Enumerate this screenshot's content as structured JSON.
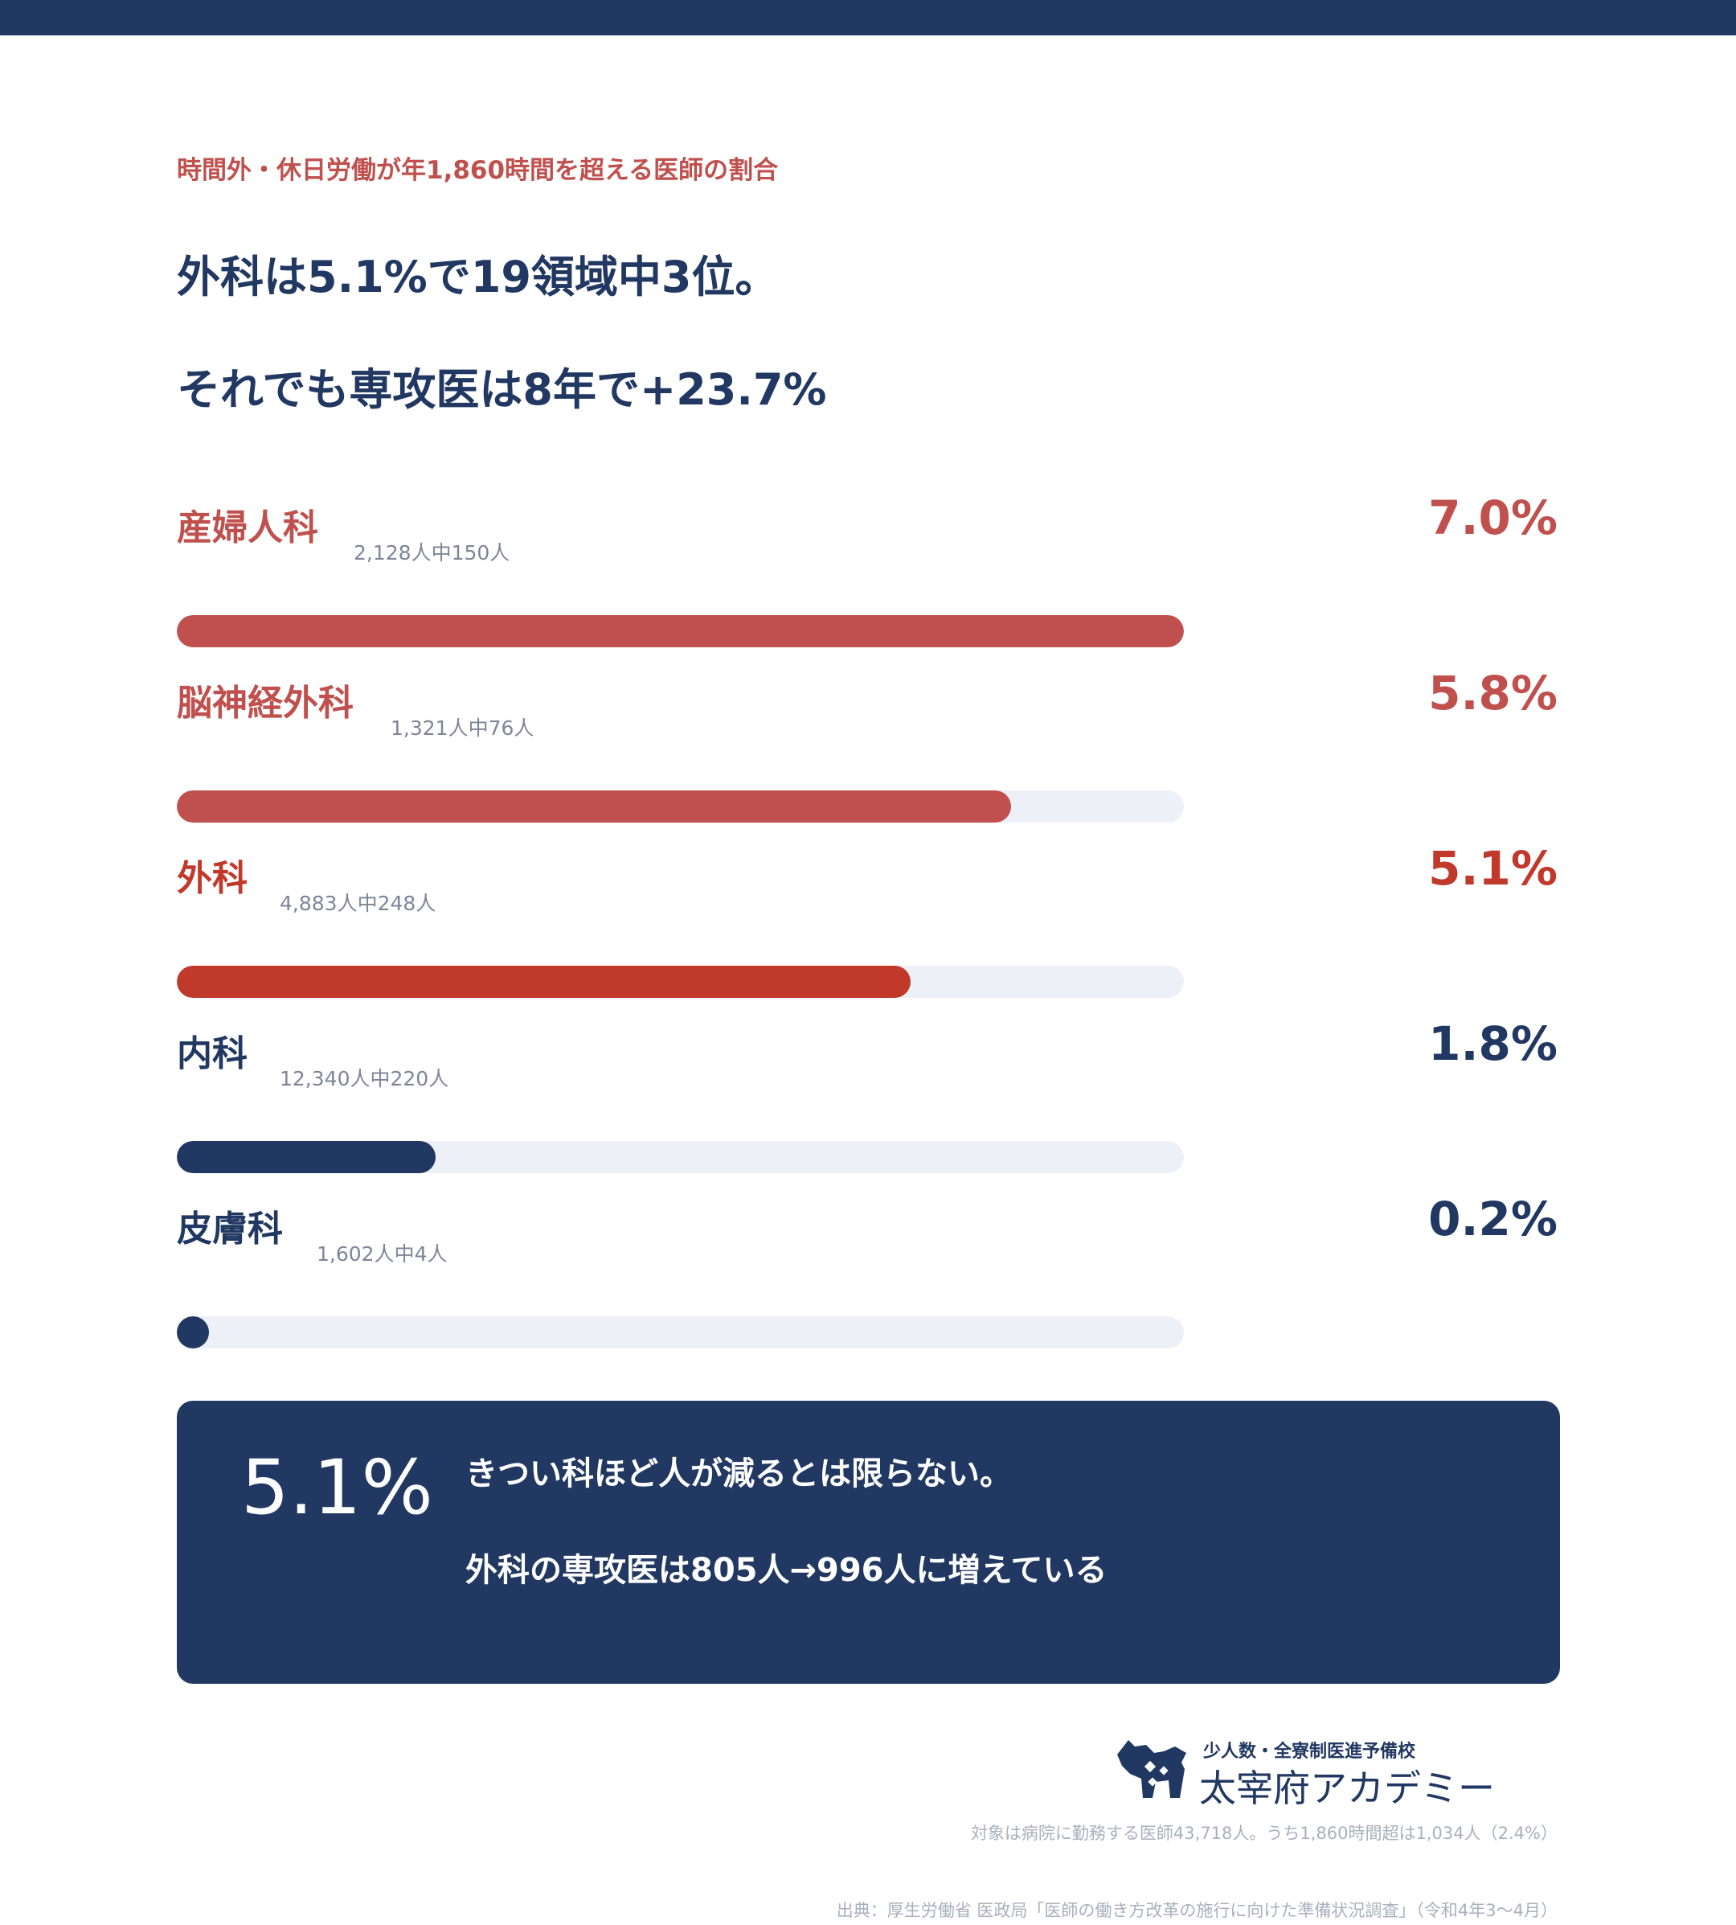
{
  "eyebrow": "時間外・休日労働が年1,860時間を超える医師の割合",
  "headline": {
    "line1": "外科は5.1%で19領域中3位。",
    "line2": "それでも専攻医は8年で+23.7%"
  },
  "chart_data": {
    "type": "bar",
    "orientation": "horizontal",
    "value_unit": "%",
    "xlim": [
      0,
      7.0
    ],
    "categories": [
      "産婦人科",
      "脳神経外科",
      "外科",
      "内科",
      "皮膚科"
    ],
    "values": [
      7.0,
      5.8,
      5.1,
      1.8,
      0.2
    ],
    "rows": [
      {
        "name": "産婦人科",
        "detail": "2,128人中150人",
        "value": 7.0,
        "label": "7.0%",
        "color": "#c0504d",
        "bar_color": "#c0504d"
      },
      {
        "name": "脳神経外科",
        "detail": "1,321人中76人",
        "value": 5.8,
        "label": "5.8%",
        "color": "#c0504d",
        "bar_color": "#c0504d"
      },
      {
        "name": "外科",
        "detail": "4,883人中248人",
        "value": 5.1,
        "label": "5.1%",
        "color": "#c0392b",
        "bar_color": "#c0392b"
      },
      {
        "name": "内科",
        "detail": "12,340人中220人",
        "value": 1.8,
        "label": "1.8%",
        "color": "#213862",
        "bar_color": "#213862"
      },
      {
        "name": "皮膚科",
        "detail": "1,602人中4人",
        "value": 0.2,
        "label": "0.2%",
        "color": "#213862",
        "bar_color": "#213862"
      }
    ]
  },
  "callout": {
    "big_value": "5.1%",
    "line1": "きつい科ほど人が減るとは限らない。",
    "line2": "外科の専攻医は805人→996人に増えている"
  },
  "logo": {
    "tagline": "少人数・全寮制医進予備校",
    "name": "太宰府アカデミー",
    "icon": "dog-mascot-icon"
  },
  "footnotes": {
    "line1": "対象は病院に勤務する医師43,718人。うち1,860時間超は1,034人（2.4%）",
    "line2": "出典：厚生労働省 医政局「医師の働き方改革の施行に向けた準備状況調査」（令和4年3〜4月）"
  },
  "colors": {
    "navy": "#213862",
    "red": "#c0504d",
    "red_strong": "#c0392b",
    "track": "#edf0f7",
    "muted": "#7d8597"
  }
}
